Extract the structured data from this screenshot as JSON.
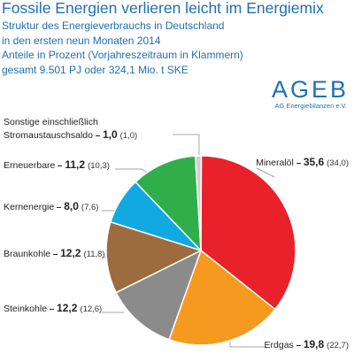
{
  "chart_data": {
    "type": "pie",
    "title": "Fossile Energien verlieren leicht im Energiemix",
    "subtitle_lines": [
      "Struktur des Energieverbrauchs in Deutschland",
      "in den ersten neun Monaten 2014",
      "Anteile in Prozent (Vorjahreszeitraum in Klammern)",
      "gesamt 9.501 PJ oder 324,1 Mio. t SKE"
    ],
    "logo": "AGEB",
    "logo_subtitle": "AG Energiebilanzen e.V.",
    "categories": [
      "Mineralöl",
      "Erdgas",
      "Steinkohle",
      "Braunkohle",
      "Kernenergie",
      "Erneuerbare",
      "Sonstige einschließlich Stromaustauschsaldo"
    ],
    "values": [
      35.6,
      19.8,
      12.2,
      12.2,
      8.0,
      11.2,
      1.0
    ],
    "value_labels": [
      "35,6",
      "19,8",
      "12,2",
      "12,2",
      "8,0",
      "11,2",
      "1,0"
    ],
    "previous_year_labels": [
      "(34,0)",
      "(22,7)",
      "(12,6)",
      "(11,8)",
      "(7,6)",
      "(10,3)",
      "(1,0)"
    ],
    "colors": [
      "#e8212b",
      "#f59a1f",
      "#8b8b8b",
      "#9c6c3e",
      "#10a9e1",
      "#2fae4a",
      "#d0d0d0"
    ]
  }
}
